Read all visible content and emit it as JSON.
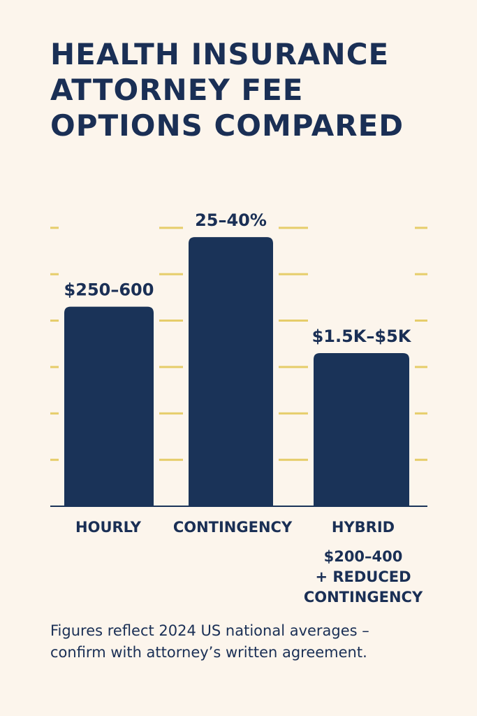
{
  "title_lines": [
    "HEALTH INSURANCE",
    "ATTORNEY FEE",
    "OPTIONS COMPARED"
  ],
  "chart_data": {
    "type": "bar",
    "categories": [
      "HOURLY",
      "CONTINGENCY",
      "HYBRID"
    ],
    "values": [
      43,
      58,
      33
    ],
    "value_labels": [
      "$250–600",
      "25–40%",
      "$1.5K–$5K"
    ],
    "category_notes": [
      "",
      "",
      "$200–400\n+ REDUCED\nCONTINGENCY"
    ],
    "ylim": [
      0,
      66
    ],
    "grid": true
  },
  "hybrid_note_lines": [
    "$200–400",
    "+ REDUCED",
    "CONTINGENCY"
  ],
  "footnote_lines": [
    "Figures reflect 2024 US national averages –",
    "confirm with attorney’s written agreement."
  ],
  "colors": {
    "background": "#fcf5ec",
    "bar": "#1a3358",
    "grid": "#e6cd6a",
    "text": "#1a2f55"
  }
}
